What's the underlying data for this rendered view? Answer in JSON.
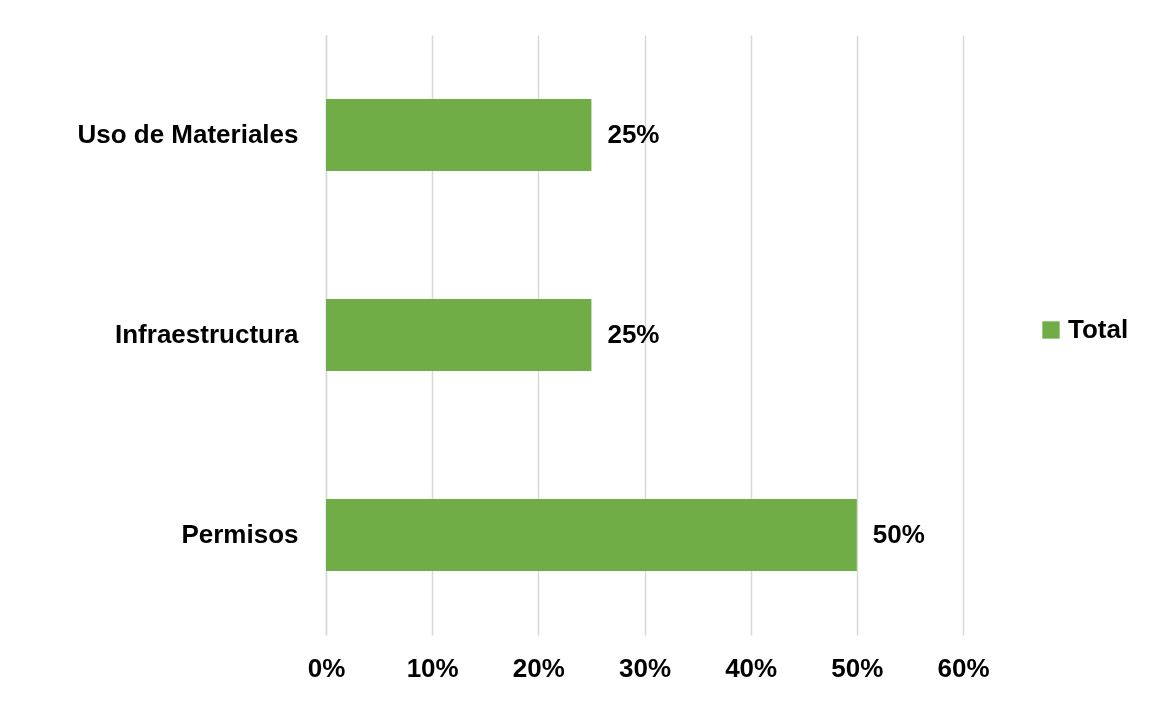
{
  "chart_data": {
    "type": "bar",
    "orientation": "horizontal",
    "categories": [
      "Uso de Materiales",
      "Infraestructura",
      "Permisos"
    ],
    "series": [
      {
        "name": "Total",
        "color": "#70ad47",
        "values": [
          25,
          25,
          50
        ],
        "value_labels": [
          "25%",
          "25%",
          "50%"
        ]
      }
    ],
    "xlim": [
      0,
      60
    ],
    "xticks": [
      {
        "value": 0,
        "label": "0%"
      },
      {
        "value": 10,
        "label": "10%"
      },
      {
        "value": 20,
        "label": "20%"
      },
      {
        "value": 30,
        "label": "30%"
      },
      {
        "value": 40,
        "label": "40%"
      },
      {
        "value": 50,
        "label": "50%"
      },
      {
        "value": 60,
        "label": "60%"
      }
    ],
    "grid": "x",
    "legend": "right"
  }
}
